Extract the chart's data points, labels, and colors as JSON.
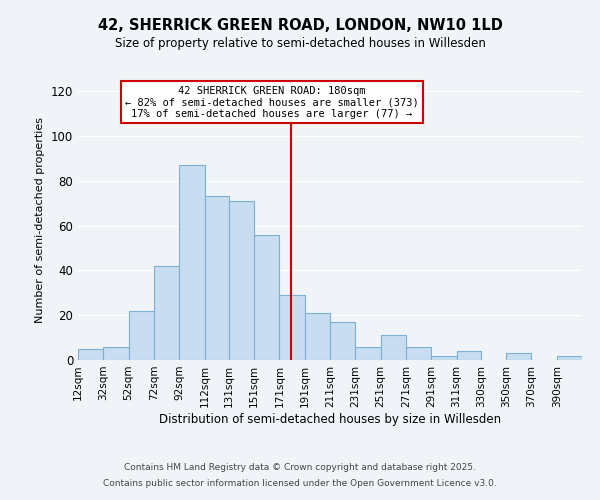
{
  "title": "42, SHERRICK GREEN ROAD, LONDON, NW10 1LD",
  "subtitle": "Size of property relative to semi-detached houses in Willesden",
  "xlabel": "Distribution of semi-detached houses by size in Willesden",
  "ylabel": "Number of semi-detached properties",
  "bar_color": "#c8ddf0",
  "bar_edge_color": "#7bafd4",
  "background_color": "#f0f4f8",
  "grid_color": "#ffffff",
  "vline_x": 180,
  "vline_color": "#cc0000",
  "annotation_title": "42 SHERRICK GREEN ROAD: 180sqm",
  "annotation_line1": "← 82% of semi-detached houses are smaller (373)",
  "annotation_line2": "17% of semi-detached houses are larger (77) →",
  "annotation_box_color": "#cc0000",
  "bins": [
    12,
    32,
    52,
    72,
    92,
    112,
    131,
    151,
    171,
    191,
    211,
    231,
    251,
    271,
    291,
    311,
    330,
    350,
    370,
    390,
    410
  ],
  "counts": [
    5,
    6,
    22,
    42,
    87,
    73,
    71,
    56,
    29,
    21,
    17,
    6,
    11,
    6,
    2,
    4,
    0,
    3,
    0,
    2
  ],
  "ylim": [
    0,
    125
  ],
  "yticks": [
    0,
    20,
    40,
    60,
    80,
    100,
    120
  ],
  "footnote1": "Contains HM Land Registry data © Crown copyright and database right 2025.",
  "footnote2": "Contains public sector information licensed under the Open Government Licence v3.0."
}
